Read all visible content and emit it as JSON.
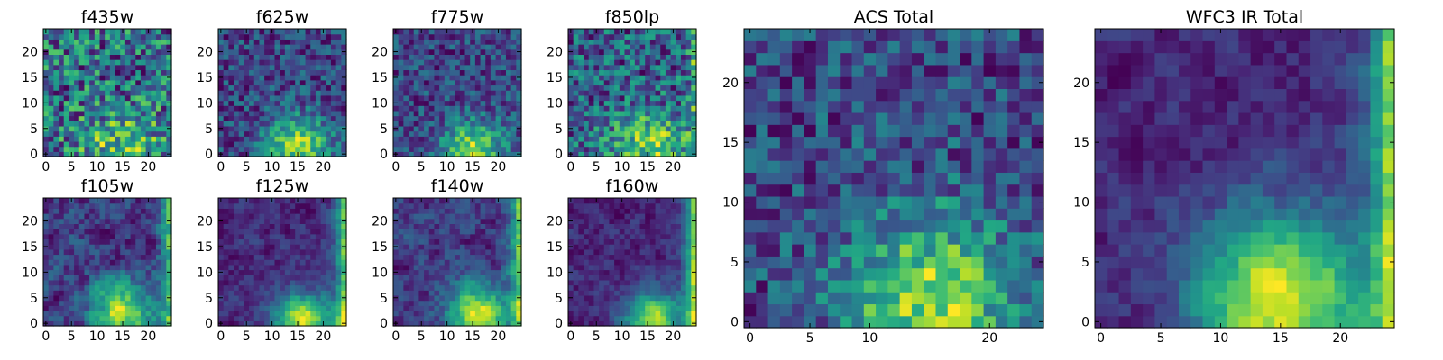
{
  "figure": {
    "colormap": "viridis",
    "background": "#ffffff"
  },
  "chart_data": [
    {
      "type": "heatmap",
      "title": "f435w",
      "grid_size": 25,
      "xlim": [
        0,
        24
      ],
      "ylim": [
        0,
        24
      ],
      "xticks": [
        0,
        5,
        10,
        15,
        20
      ],
      "yticks": [
        0,
        5,
        10,
        15,
        20
      ],
      "pattern": {
        "peak": [
          15,
          2
        ],
        "peak_sigma": [
          6,
          4
        ],
        "peak_amp": 0.22,
        "edge": "none",
        "edge_amp": 0.0,
        "base": 0.64,
        "noise": 0.24,
        "seed": 11,
        "smooth": 0
      }
    },
    {
      "type": "heatmap",
      "title": "f625w",
      "grid_size": 25,
      "xlim": [
        0,
        24
      ],
      "ylim": [
        0,
        24
      ],
      "xticks": [
        0,
        5,
        10,
        15,
        20
      ],
      "yticks": [
        0,
        5,
        10,
        15,
        20
      ],
      "pattern": {
        "peak": [
          15,
          2
        ],
        "peak_sigma": [
          4.5,
          4
        ],
        "peak_amp": 0.62,
        "edge": "none",
        "edge_amp": 0.0,
        "base": 0.38,
        "noise": 0.22,
        "seed": 22,
        "smooth": 0
      }
    },
    {
      "type": "heatmap",
      "title": "f775w",
      "grid_size": 25,
      "xlim": [
        0,
        24
      ],
      "ylim": [
        0,
        24
      ],
      "xticks": [
        0,
        5,
        10,
        15,
        20
      ],
      "yticks": [
        0,
        5,
        10,
        15,
        20
      ],
      "pattern": {
        "peak": [
          15,
          1
        ],
        "peak_sigma": [
          4.5,
          4
        ],
        "peak_amp": 0.6,
        "edge": "none",
        "edge_amp": 0.0,
        "base": 0.45,
        "noise": 0.22,
        "seed": 33,
        "smooth": 0
      }
    },
    {
      "type": "heatmap",
      "title": "f850lp",
      "grid_size": 25,
      "xlim": [
        0,
        24
      ],
      "ylim": [
        0,
        24
      ],
      "xticks": [
        0,
        5,
        10,
        15,
        20
      ],
      "yticks": [
        0,
        5,
        10,
        15,
        20
      ],
      "pattern": {
        "peak": [
          15,
          2
        ],
        "peak_sigma": [
          5,
          4
        ],
        "peak_amp": 0.42,
        "edge": "right",
        "edge_amp": 0.25,
        "base": 0.55,
        "noise": 0.26,
        "seed": 44,
        "smooth": 0
      }
    },
    {
      "type": "heatmap",
      "title": "f105w",
      "grid_size": 25,
      "xlim": [
        0,
        24
      ],
      "ylim": [
        0,
        24
      ],
      "xticks": [
        0,
        5,
        10,
        15,
        20
      ],
      "yticks": [
        0,
        5,
        10,
        15,
        20
      ],
      "pattern": {
        "peak": [
          15,
          2
        ],
        "peak_sigma": [
          4,
          4
        ],
        "peak_amp": 0.42,
        "edge": "right",
        "edge_amp": 0.3,
        "base": 0.52,
        "noise": 0.16,
        "seed": 55,
        "smooth": 1
      }
    },
    {
      "type": "heatmap",
      "title": "f125w",
      "grid_size": 25,
      "xlim": [
        0,
        24
      ],
      "ylim": [
        0,
        24
      ],
      "xticks": [
        0,
        5,
        10,
        15,
        20
      ],
      "yticks": [
        0,
        5,
        10,
        15,
        20
      ],
      "pattern": {
        "peak": [
          16,
          1
        ],
        "peak_sigma": [
          4,
          3.5
        ],
        "peak_amp": 0.62,
        "edge": "right",
        "edge_amp": 0.55,
        "base": 0.36,
        "noise": 0.14,
        "seed": 66,
        "smooth": 1
      }
    },
    {
      "type": "heatmap",
      "title": "f140w",
      "grid_size": 25,
      "xlim": [
        0,
        24
      ],
      "ylim": [
        0,
        24
      ],
      "xticks": [
        0,
        5,
        10,
        15,
        20
      ],
      "yticks": [
        0,
        5,
        10,
        15,
        20
      ],
      "pattern": {
        "peak": [
          16,
          2
        ],
        "peak_sigma": [
          4,
          4
        ],
        "peak_amp": 0.58,
        "edge": "right",
        "edge_amp": 0.5,
        "base": 0.42,
        "noise": 0.18,
        "seed": 77,
        "smooth": 1
      }
    },
    {
      "type": "heatmap",
      "title": "f160w",
      "grid_size": 25,
      "xlim": [
        0,
        24
      ],
      "ylim": [
        0,
        24
      ],
      "xticks": [
        0,
        5,
        10,
        15,
        20
      ],
      "yticks": [
        0,
        5,
        10,
        15,
        20
      ],
      "pattern": {
        "peak": [
          16,
          1
        ],
        "peak_sigma": [
          4,
          3.5
        ],
        "peak_amp": 0.64,
        "edge": "right",
        "edge_amp": 0.7,
        "base": 0.28,
        "noise": 0.14,
        "seed": 88,
        "smooth": 1
      }
    },
    {
      "type": "heatmap",
      "title": "ACS Total",
      "grid_size": 25,
      "xlim": [
        0,
        24
      ],
      "ylim": [
        0,
        24
      ],
      "xticks": [
        0,
        5,
        10,
        20
      ],
      "yticks": [
        0,
        5,
        10,
        15,
        20
      ],
      "pattern": {
        "peak": [
          15,
          2
        ],
        "peak_sigma": [
          5,
          5
        ],
        "peak_amp": 0.58,
        "edge": "none",
        "edge_amp": 0.0,
        "base": 0.42,
        "noise": 0.22,
        "seed": 99,
        "smooth": 0
      }
    },
    {
      "type": "heatmap",
      "title": "WFC3 IR Total",
      "grid_size": 25,
      "xlim": [
        0,
        24
      ],
      "ylim": [
        0,
        24
      ],
      "xticks": [
        0,
        5,
        10,
        15,
        20
      ],
      "yticks": [
        0,
        5,
        10,
        15,
        20
      ],
      "pattern": {
        "peak": [
          15,
          2
        ],
        "peak_sigma": [
          5,
          5
        ],
        "peak_amp": 0.6,
        "edge": "right",
        "edge_amp": 0.55,
        "base": 0.32,
        "noise": 0.12,
        "seed": 123,
        "smooth": 1
      }
    }
  ]
}
